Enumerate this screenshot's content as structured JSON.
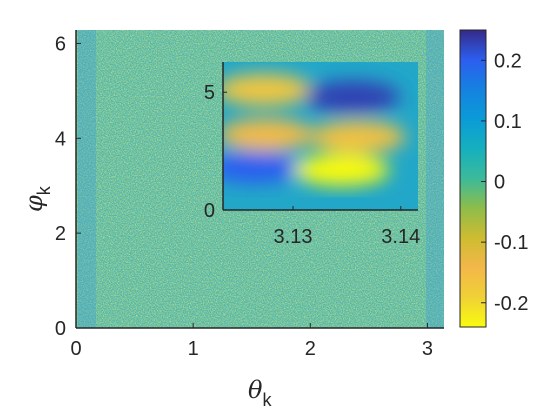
{
  "chart_data": [
    {
      "type": "heatmap",
      "title": "",
      "xlabel": {
        "symbol": "θ",
        "subscript": "k"
      },
      "ylabel": {
        "symbol": "φ",
        "subscript": "k"
      },
      "xlim": [
        0,
        3.14159
      ],
      "ylim": [
        0,
        6.28319
      ],
      "xticks": [
        0,
        1,
        2,
        3
      ],
      "xtick_labels": [
        "0",
        "1",
        "2",
        "3"
      ],
      "yticks": [
        0,
        2,
        4,
        6
      ],
      "ytick_labels": [
        "0",
        "2",
        "4",
        "6"
      ],
      "description_of_field": "noise-like fluctuations around 0 over the whole (θk, φk) domain",
      "value_range_shown": [
        -0.24,
        0.24
      ],
      "grid": false
    },
    {
      "type": "heatmap",
      "role": "inset",
      "xlim": [
        3.1235,
        3.1416
      ],
      "ylim": [
        0,
        6.28319
      ],
      "xticks": [
        3.13,
        3.14
      ],
      "xtick_labels": [
        "3.13",
        "3.14"
      ],
      "yticks": [
        0,
        5
      ],
      "ytick_labels": [
        "0",
        "5"
      ],
      "features": [
        {
          "x": 3.1273,
          "y": 5.1,
          "value": -0.17
        },
        {
          "x": 3.1355,
          "y": 4.8,
          "value": 0.23
        },
        {
          "x": 3.1275,
          "y": 3.2,
          "value": -0.15
        },
        {
          "x": 3.1265,
          "y": 1.8,
          "value": 0.2
        },
        {
          "x": 3.1345,
          "y": 1.7,
          "value": -0.24
        },
        {
          "x": 3.136,
          "y": 3.1,
          "value": -0.16
        }
      ],
      "grid": false
    }
  ],
  "colorbar": {
    "colormap": "parula",
    "min": -0.24,
    "max": 0.25,
    "ticks": [
      -0.2,
      -0.1,
      0,
      0.1,
      0.2
    ],
    "tick_labels": [
      "-0.2",
      "-0.1",
      "0",
      "0.1",
      "0.2"
    ]
  }
}
